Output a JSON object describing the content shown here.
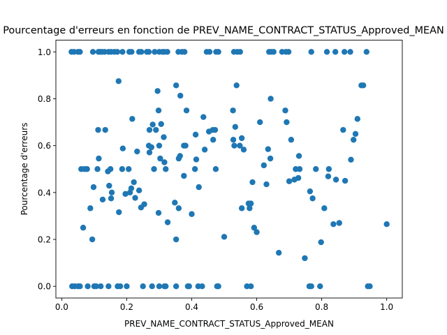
{
  "chart_data": {
    "type": "scatter",
    "title": "Pourcentage d'erreurs en fonction de PREV_NAME_CONTRACT_STATUS_Approved_MEAN",
    "xlabel": "PREV_NAME_CONTRACT_STATUS_Approved_MEAN",
    "ylabel": "Pourcentage d'erreurs",
    "xlim": [
      -0.018,
      1.048
    ],
    "ylim": [
      -0.05,
      1.05
    ],
    "xticks": [
      0.0,
      0.2,
      0.4,
      0.6,
      0.8,
      1.0
    ],
    "xtick_labels": [
      "0.0",
      "0.2",
      "0.4",
      "0.6",
      "0.8",
      "1.0"
    ],
    "yticks": [
      0.0,
      0.2,
      0.4,
      0.6,
      0.8,
      1.0
    ],
    "ytick_labels": [
      "0.0",
      "0.2",
      "0.4",
      "0.6",
      "0.8",
      "1.0"
    ],
    "grid": false,
    "marker_color": "#1f77b4",
    "points": [
      [
        0.03,
        1.0
      ],
      [
        0.038,
        1.0
      ],
      [
        0.05,
        1.0
      ],
      [
        0.056,
        1.0
      ],
      [
        0.096,
        1.0
      ],
      [
        0.113,
        1.0
      ],
      [
        0.118,
        1.0
      ],
      [
        0.124,
        1.0
      ],
      [
        0.132,
        1.0
      ],
      [
        0.144,
        1.0
      ],
      [
        0.152,
        1.0
      ],
      [
        0.162,
        1.0
      ],
      [
        0.171,
        1.0
      ],
      [
        0.187,
        1.0
      ],
      [
        0.208,
        1.0
      ],
      [
        0.215,
        1.0
      ],
      [
        0.238,
        1.0
      ],
      [
        0.245,
        1.0
      ],
      [
        0.262,
        1.0
      ],
      [
        0.268,
        1.0
      ],
      [
        0.286,
        1.0
      ],
      [
        0.3,
        1.0
      ],
      [
        0.31,
        1.0
      ],
      [
        0.316,
        1.0
      ],
      [
        0.325,
        1.0
      ],
      [
        0.359,
        1.0
      ],
      [
        0.37,
        1.0
      ],
      [
        0.378,
        1.0
      ],
      [
        0.446,
        1.0
      ],
      [
        0.455,
        1.0
      ],
      [
        0.475,
        1.0
      ],
      [
        0.482,
        1.0
      ],
      [
        0.53,
        1.0
      ],
      [
        0.54,
        1.0
      ],
      [
        0.549,
        1.0
      ],
      [
        0.638,
        1.0
      ],
      [
        0.645,
        1.0
      ],
      [
        0.652,
        1.0
      ],
      [
        0.678,
        1.0
      ],
      [
        0.69,
        1.0
      ],
      [
        0.698,
        1.0
      ],
      [
        0.768,
        1.0
      ],
      [
        0.816,
        1.0
      ],
      [
        0.842,
        1.0
      ],
      [
        0.87,
        1.0
      ],
      [
        0.888,
        1.0
      ],
      [
        0.938,
        1.0
      ],
      [
        0.032,
        0.0
      ],
      [
        0.04,
        0.0
      ],
      [
        0.05,
        0.0
      ],
      [
        0.056,
        0.0
      ],
      [
        0.08,
        0.0
      ],
      [
        0.1,
        0.0
      ],
      [
        0.106,
        0.0
      ],
      [
        0.12,
        0.0
      ],
      [
        0.144,
        0.0
      ],
      [
        0.172,
        0.0
      ],
      [
        0.18,
        0.0
      ],
      [
        0.2,
        0.0
      ],
      [
        0.25,
        0.0
      ],
      [
        0.278,
        0.0
      ],
      [
        0.3,
        0.0
      ],
      [
        0.316,
        0.0
      ],
      [
        0.32,
        0.0
      ],
      [
        0.352,
        0.0
      ],
      [
        0.388,
        0.0
      ],
      [
        0.392,
        0.0
      ],
      [
        0.42,
        0.0
      ],
      [
        0.432,
        0.0
      ],
      [
        0.478,
        0.0
      ],
      [
        0.482,
        0.0
      ],
      [
        0.57,
        0.0
      ],
      [
        0.582,
        0.0
      ],
      [
        0.762,
        0.0
      ],
      [
        0.768,
        0.0
      ],
      [
        0.795,
        0.0
      ],
      [
        0.942,
        0.0
      ],
      [
        0.948,
        0.0
      ],
      [
        0.175,
        0.875
      ],
      [
        0.295,
        0.833
      ],
      [
        0.365,
        0.813
      ],
      [
        0.538,
        0.857
      ],
      [
        0.352,
        0.857
      ],
      [
        0.643,
        0.8
      ],
      [
        0.922,
        0.857
      ],
      [
        0.928,
        0.857
      ],
      [
        0.217,
        0.714
      ],
      [
        0.298,
        0.75
      ],
      [
        0.384,
        0.75
      ],
      [
        0.534,
        0.68
      ],
      [
        0.61,
        0.7
      ],
      [
        0.688,
        0.75
      ],
      [
        0.692,
        0.7
      ],
      [
        0.91,
        0.714
      ],
      [
        0.112,
        0.667
      ],
      [
        0.134,
        0.667
      ],
      [
        0.27,
        0.667
      ],
      [
        0.28,
        0.69
      ],
      [
        0.29,
        0.667
      ],
      [
        0.306,
        0.692
      ],
      [
        0.314,
        0.636
      ],
      [
        0.412,
        0.647
      ],
      [
        0.436,
        0.722
      ],
      [
        0.453,
        0.66
      ],
      [
        0.465,
        0.667
      ],
      [
        0.472,
        0.667
      ],
      [
        0.527,
        0.75
      ],
      [
        0.528,
        0.625
      ],
      [
        0.554,
        0.632
      ],
      [
        0.706,
        0.625
      ],
      [
        0.866,
        0.667
      ],
      [
        0.904,
        0.65
      ],
      [
        0.188,
        0.588
      ],
      [
        0.232,
        0.575
      ],
      [
        0.268,
        0.6
      ],
      [
        0.276,
        0.593
      ],
      [
        0.3,
        0.6
      ],
      [
        0.27,
        0.571
      ],
      [
        0.364,
        0.556
      ],
      [
        0.376,
        0.6
      ],
      [
        0.381,
        0.6
      ],
      [
        0.44,
        0.583
      ],
      [
        0.466,
        0.625
      ],
      [
        0.531,
        0.6
      ],
      [
        0.548,
        0.6
      ],
      [
        0.56,
        0.583
      ],
      [
        0.635,
        0.585
      ],
      [
        0.73,
        0.556
      ],
      [
        0.872,
        0.45
      ],
      [
        0.06,
        0.5
      ],
      [
        0.07,
        0.5
      ],
      [
        0.078,
        0.5
      ],
      [
        0.11,
        0.5
      ],
      [
        0.142,
        0.49
      ],
      [
        0.15,
        0.5
      ],
      [
        0.186,
        0.5
      ],
      [
        0.206,
        0.5
      ],
      [
        0.284,
        0.5
      ],
      [
        0.303,
        0.545
      ],
      [
        0.316,
        0.529
      ],
      [
        0.32,
        0.5
      ],
      [
        0.36,
        0.545
      ],
      [
        0.41,
        0.5
      ],
      [
        0.414,
        0.541
      ],
      [
        0.474,
        0.5
      ],
      [
        0.642,
        0.545
      ],
      [
        0.622,
        0.516
      ],
      [
        0.72,
        0.5
      ],
      [
        0.732,
        0.5
      ],
      [
        0.822,
        0.5
      ],
      [
        0.89,
        0.54
      ],
      [
        0.898,
        0.625
      ],
      [
        0.114,
        0.545
      ],
      [
        0.088,
        0.333
      ],
      [
        0.098,
        0.423
      ],
      [
        0.126,
        0.37
      ],
      [
        0.146,
        0.429
      ],
      [
        0.154,
        0.4
      ],
      [
        0.152,
        0.375
      ],
      [
        0.176,
        0.316
      ],
      [
        0.196,
        0.394
      ],
      [
        0.21,
        0.4
      ],
      [
        0.214,
        0.418
      ],
      [
        0.222,
        0.444
      ],
      [
        0.226,
        0.377
      ],
      [
        0.238,
        0.409
      ],
      [
        0.244,
        0.336
      ],
      [
        0.254,
        0.35
      ],
      [
        0.298,
        0.313
      ],
      [
        0.348,
        0.357
      ],
      [
        0.36,
        0.333
      ],
      [
        0.376,
        0.471
      ],
      [
        0.4,
        0.308
      ],
      [
        0.422,
        0.423
      ],
      [
        0.554,
        0.333
      ],
      [
        0.575,
        0.353
      ],
      [
        0.578,
        0.333
      ],
      [
        0.582,
        0.353
      ],
      [
        0.587,
        0.444
      ],
      [
        0.63,
        0.435
      ],
      [
        0.7,
        0.448
      ],
      [
        0.716,
        0.455
      ],
      [
        0.728,
        0.462
      ],
      [
        0.764,
        0.405
      ],
      [
        0.772,
        0.375
      ],
      [
        0.782,
        0.5
      ],
      [
        0.808,
        0.333
      ],
      [
        0.82,
        0.469
      ],
      [
        0.844,
        0.455
      ],
      [
        0.066,
        0.25
      ],
      [
        0.094,
        0.2
      ],
      [
        0.326,
        0.273
      ],
      [
        0.352,
        0.2
      ],
      [
        0.5,
        0.211
      ],
      [
        0.592,
        0.25
      ],
      [
        0.6,
        0.231
      ],
      [
        0.668,
        0.143
      ],
      [
        0.748,
        0.12
      ],
      [
        0.798,
        0.188
      ],
      [
        0.836,
        0.265
      ],
      [
        0.854,
        0.27
      ],
      [
        1.0,
        0.265
      ]
    ]
  }
}
